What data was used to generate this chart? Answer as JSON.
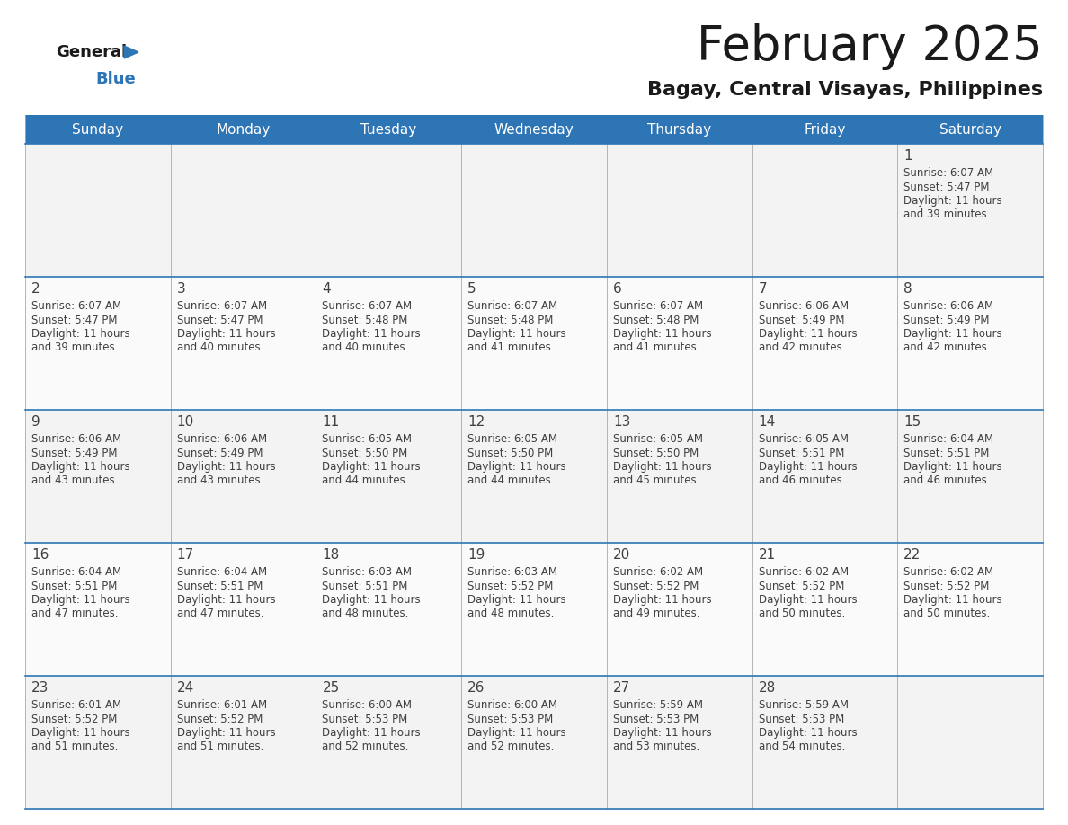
{
  "title": "February 2025",
  "subtitle": "Bagay, Central Visayas, Philippines",
  "header_color": "#2E75B6",
  "header_text_color": "#FFFFFF",
  "border_color": "#2E75B6",
  "cell_line_color": "#AAAAAA",
  "text_color": "#404040",
  "days_of_week": [
    "Sunday",
    "Monday",
    "Tuesday",
    "Wednesday",
    "Thursday",
    "Friday",
    "Saturday"
  ],
  "calendar_data": [
    [
      null,
      null,
      null,
      null,
      null,
      null,
      {
        "day": 1,
        "sunrise": "6:07 AM",
        "sunset": "5:47 PM",
        "daylight": "11 hours and 39 minutes."
      }
    ],
    [
      {
        "day": 2,
        "sunrise": "6:07 AM",
        "sunset": "5:47 PM",
        "daylight": "11 hours and 39 minutes."
      },
      {
        "day": 3,
        "sunrise": "6:07 AM",
        "sunset": "5:47 PM",
        "daylight": "11 hours and 40 minutes."
      },
      {
        "day": 4,
        "sunrise": "6:07 AM",
        "sunset": "5:48 PM",
        "daylight": "11 hours and 40 minutes."
      },
      {
        "day": 5,
        "sunrise": "6:07 AM",
        "sunset": "5:48 PM",
        "daylight": "11 hours and 41 minutes."
      },
      {
        "day": 6,
        "sunrise": "6:07 AM",
        "sunset": "5:48 PM",
        "daylight": "11 hours and 41 minutes."
      },
      {
        "day": 7,
        "sunrise": "6:06 AM",
        "sunset": "5:49 PM",
        "daylight": "11 hours and 42 minutes."
      },
      {
        "day": 8,
        "sunrise": "6:06 AM",
        "sunset": "5:49 PM",
        "daylight": "11 hours and 42 minutes."
      }
    ],
    [
      {
        "day": 9,
        "sunrise": "6:06 AM",
        "sunset": "5:49 PM",
        "daylight": "11 hours and 43 minutes."
      },
      {
        "day": 10,
        "sunrise": "6:06 AM",
        "sunset": "5:49 PM",
        "daylight": "11 hours and 43 minutes."
      },
      {
        "day": 11,
        "sunrise": "6:05 AM",
        "sunset": "5:50 PM",
        "daylight": "11 hours and 44 minutes."
      },
      {
        "day": 12,
        "sunrise": "6:05 AM",
        "sunset": "5:50 PM",
        "daylight": "11 hours and 44 minutes."
      },
      {
        "day": 13,
        "sunrise": "6:05 AM",
        "sunset": "5:50 PM",
        "daylight": "11 hours and 45 minutes."
      },
      {
        "day": 14,
        "sunrise": "6:05 AM",
        "sunset": "5:51 PM",
        "daylight": "11 hours and 46 minutes."
      },
      {
        "day": 15,
        "sunrise": "6:04 AM",
        "sunset": "5:51 PM",
        "daylight": "11 hours and 46 minutes."
      }
    ],
    [
      {
        "day": 16,
        "sunrise": "6:04 AM",
        "sunset": "5:51 PM",
        "daylight": "11 hours and 47 minutes."
      },
      {
        "day": 17,
        "sunrise": "6:04 AM",
        "sunset": "5:51 PM",
        "daylight": "11 hours and 47 minutes."
      },
      {
        "day": 18,
        "sunrise": "6:03 AM",
        "sunset": "5:51 PM",
        "daylight": "11 hours and 48 minutes."
      },
      {
        "day": 19,
        "sunrise": "6:03 AM",
        "sunset": "5:52 PM",
        "daylight": "11 hours and 48 minutes."
      },
      {
        "day": 20,
        "sunrise": "6:02 AM",
        "sunset": "5:52 PM",
        "daylight": "11 hours and 49 minutes."
      },
      {
        "day": 21,
        "sunrise": "6:02 AM",
        "sunset": "5:52 PM",
        "daylight": "11 hours and 50 minutes."
      },
      {
        "day": 22,
        "sunrise": "6:02 AM",
        "sunset": "5:52 PM",
        "daylight": "11 hours and 50 minutes."
      }
    ],
    [
      {
        "day": 23,
        "sunrise": "6:01 AM",
        "sunset": "5:52 PM",
        "daylight": "11 hours and 51 minutes."
      },
      {
        "day": 24,
        "sunrise": "6:01 AM",
        "sunset": "5:52 PM",
        "daylight": "11 hours and 51 minutes."
      },
      {
        "day": 25,
        "sunrise": "6:00 AM",
        "sunset": "5:53 PM",
        "daylight": "11 hours and 52 minutes."
      },
      {
        "day": 26,
        "sunrise": "6:00 AM",
        "sunset": "5:53 PM",
        "daylight": "11 hours and 52 minutes."
      },
      {
        "day": 27,
        "sunrise": "5:59 AM",
        "sunset": "5:53 PM",
        "daylight": "11 hours and 53 minutes."
      },
      {
        "day": 28,
        "sunrise": "5:59 AM",
        "sunset": "5:53 PM",
        "daylight": "11 hours and 54 minutes."
      },
      null
    ]
  ],
  "logo_text_general": "General",
  "logo_text_blue": "Blue",
  "logo_color_general": "#1a1a1a",
  "logo_color_blue": "#2E75B6",
  "logo_triangle_color": "#2E75B6",
  "title_fontsize": 38,
  "subtitle_fontsize": 16,
  "header_fontsize": 11,
  "day_num_fontsize": 11,
  "cell_fontsize": 8.5
}
